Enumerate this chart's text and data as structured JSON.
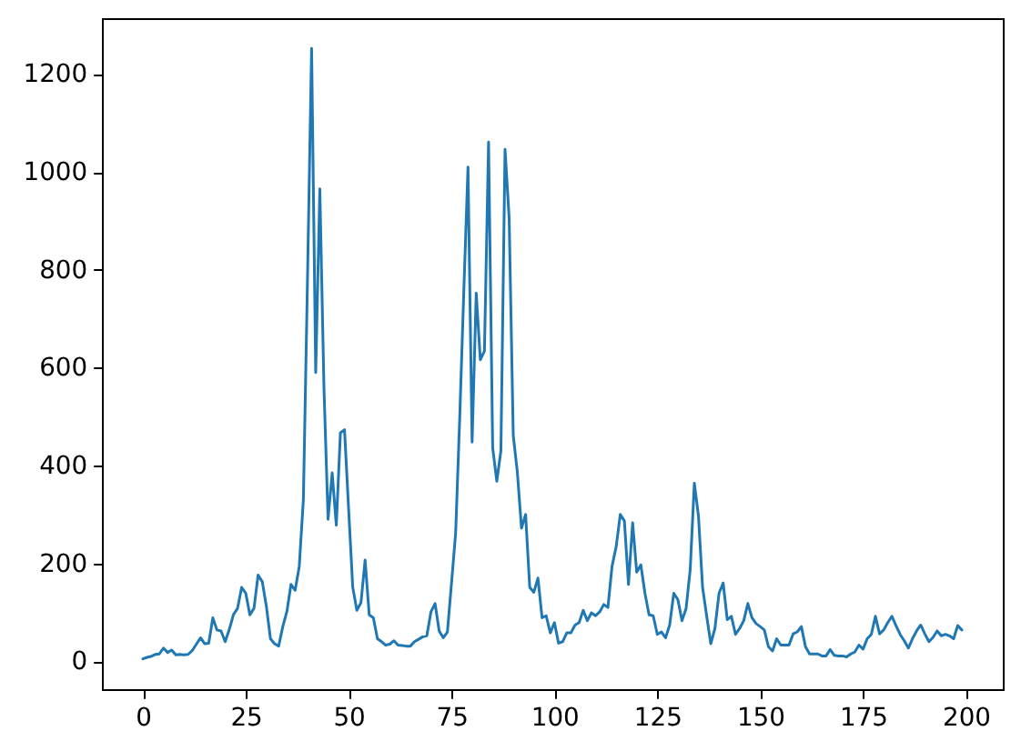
{
  "chart_data": {
    "type": "line",
    "x": [
      0,
      1,
      2,
      3,
      4,
      5,
      6,
      7,
      8,
      9,
      10,
      11,
      12,
      13,
      14,
      15,
      16,
      17,
      18,
      19,
      20,
      21,
      22,
      23,
      24,
      25,
      26,
      27,
      28,
      29,
      30,
      31,
      32,
      33,
      34,
      35,
      36,
      37,
      38,
      39,
      40,
      41,
      42,
      43,
      44,
      45,
      46,
      47,
      48,
      49,
      50,
      51,
      52,
      53,
      54,
      55,
      56,
      57,
      58,
      59,
      60,
      61,
      62,
      63,
      64,
      65,
      66,
      67,
      68,
      69,
      70,
      71,
      72,
      73,
      74,
      75,
      76,
      77,
      78,
      79,
      80,
      81,
      82,
      83,
      84,
      85,
      86,
      87,
      88,
      89,
      90,
      91,
      92,
      93,
      94,
      95,
      96,
      97,
      98,
      99,
      100,
      101,
      102,
      103,
      104,
      105,
      106,
      107,
      108,
      109,
      110,
      111,
      112,
      113,
      114,
      115,
      116,
      117,
      118,
      119,
      120,
      121,
      122,
      123,
      124,
      125,
      126,
      127,
      128,
      129,
      130,
      131,
      132,
      133,
      134,
      135,
      136,
      137,
      138,
      139,
      140,
      141,
      142,
      143,
      144,
      145,
      146,
      147,
      148,
      149,
      150,
      151,
      152,
      153,
      154,
      155,
      156,
      157,
      158,
      159,
      160,
      161,
      162,
      163,
      164,
      165,
      166,
      167,
      168,
      169,
      170,
      171,
      172,
      173,
      174,
      175,
      176,
      177,
      178,
      179,
      180,
      181,
      182,
      183,
      184,
      185,
      186,
      187,
      188,
      189,
      190,
      191,
      192,
      193,
      194,
      195,
      196,
      197,
      198,
      199
    ],
    "series": [
      {
        "color": "#1f77b4",
        "values": [
          5,
          8,
          10,
          14,
          15,
          27,
          18,
          23,
          13,
          14,
          13,
          14,
          22,
          35,
          48,
          36,
          37,
          89,
          64,
          62,
          40,
          65,
          95,
          108,
          151,
          139,
          95,
          108,
          176,
          163,
          113,
          46,
          36,
          31,
          71,
          102,
          157,
          145,
          194,
          330,
          780,
          1252,
          590,
          965,
          560,
          290,
          385,
          278,
          467,
          473,
          310,
          151,
          104,
          120,
          207,
          95,
          89,
          46,
          40,
          33,
          35,
          42,
          33,
          32,
          31,
          31,
          40,
          45,
          50,
          52,
          101,
          118,
          62,
          48,
          60,
          160,
          262,
          500,
          760,
          1010,
          448,
          752,
          616,
          634,
          1061,
          436,
          368,
          430,
          1046,
          906,
          461,
          386,
          272,
          300,
          151,
          141,
          170,
          89,
          93,
          58,
          79,
          37,
          40,
          58,
          58,
          74,
          79,
          104,
          83,
          99,
          93,
          101,
          116,
          110,
          194,
          234,
          300,
          287,
          157,
          283,
          182,
          197,
          139,
          95,
          93,
          55,
          60,
          48,
          74,
          139,
          126,
          83,
          108,
          188,
          364,
          297,
          151,
          92,
          36,
          67,
          139,
          160,
          85,
          92,
          55,
          67,
          83,
          118,
          89,
          77,
          71,
          64,
          30,
          21,
          46,
          33,
          33,
          33,
          56,
          60,
          71,
          30,
          15,
          15,
          15,
          11,
          11,
          24,
          12,
          11,
          11,
          9,
          15,
          19,
          33,
          25,
          46,
          55,
          92,
          56,
          64,
          79,
          92,
          73,
          55,
          42,
          27,
          46,
          62,
          74,
          56,
          40,
          49,
          62,
          52,
          55,
          52,
          46,
          73,
          64
        ]
      }
    ],
    "xlim": [
      -9.95,
      208.95
    ],
    "ylim": [
      -57,
      1314
    ],
    "xticks": [
      0,
      25,
      50,
      75,
      100,
      125,
      150,
      175,
      200
    ],
    "yticks": [
      0,
      200,
      400,
      600,
      800,
      1000,
      1200
    ]
  }
}
